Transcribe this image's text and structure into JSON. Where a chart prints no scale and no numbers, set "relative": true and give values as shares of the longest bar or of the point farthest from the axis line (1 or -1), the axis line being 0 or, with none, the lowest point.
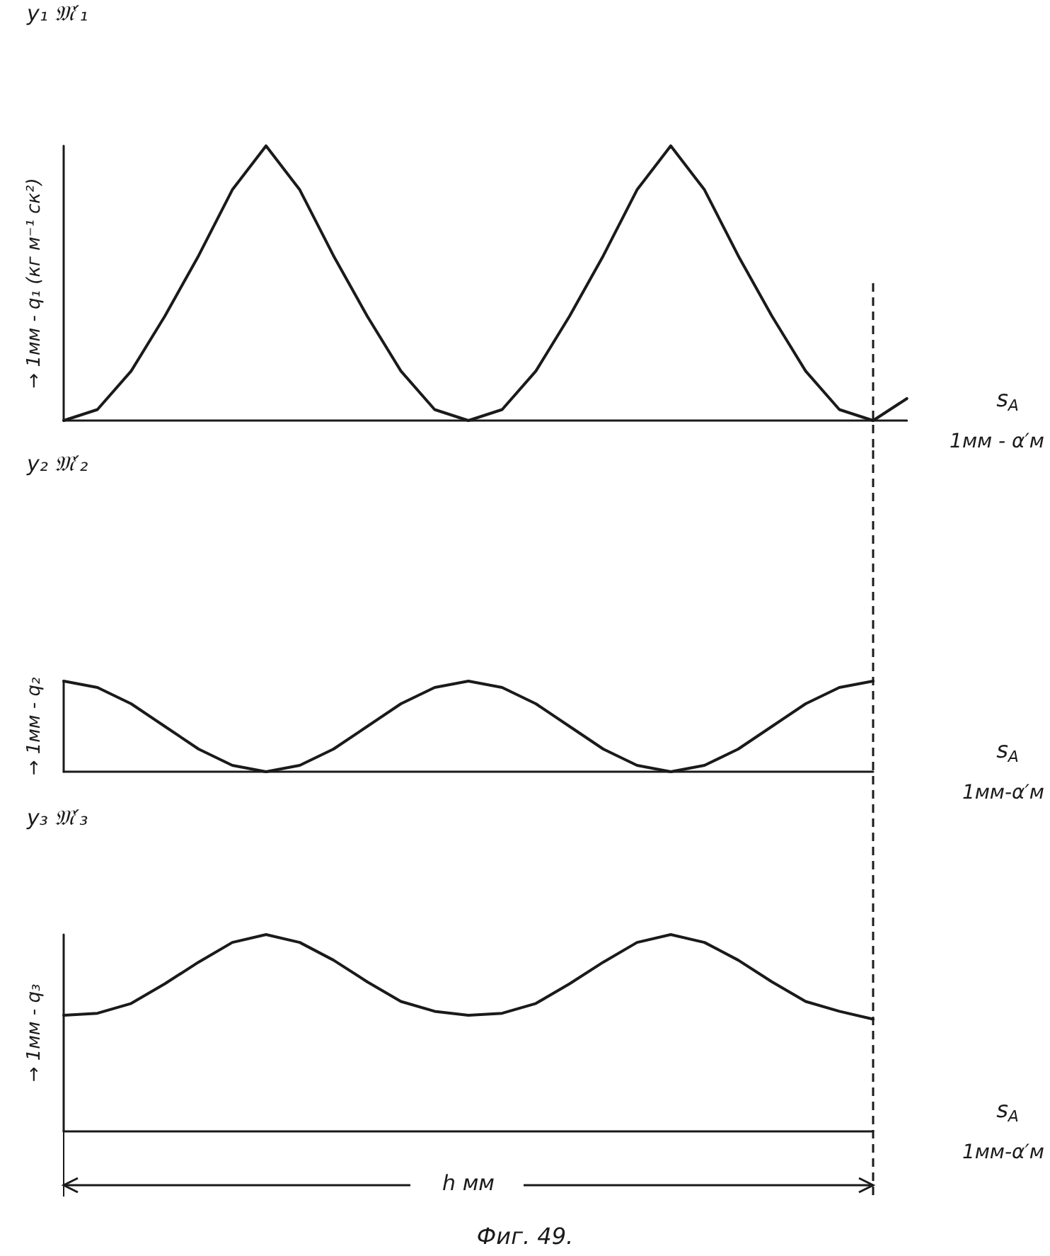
{
  "chart_data": [
    {
      "type": "line",
      "relative": true,
      "ylabel": "→ 1мм - q₁ (кг м⁻¹ ск²)",
      "xlabel": "s$_{A}$",
      "annotations": [
        "y₁ 𝔐′₁",
        "1мм - α′м"
      ],
      "marker": "none",
      "line_style": "solid",
      "categories": [
        null,
        null,
        null,
        null,
        null,
        null,
        null,
        null,
        null,
        null,
        null,
        null,
        null,
        null,
        null,
        null,
        null,
        null,
        null,
        null,
        null,
        null,
        null,
        null,
        null,
        null
      ],
      "series": [
        {
          "color": "#1a1a1a",
          "values": [
            0,
            0.04,
            0.18,
            0.38,
            0.6,
            0.84,
            1,
            0.84,
            0.6,
            0.38,
            0.18,
            0.04,
            0,
            0.04,
            0.18,
            0.38,
            0.6,
            0.84,
            1,
            0.84,
            0.6,
            0.38,
            0.18,
            0.04,
            0,
            0.08
          ]
        }
      ]
    },
    {
      "type": "line",
      "relative": true,
      "ylabel": "→ 1мм - q₂",
      "xlabel": "s$_{A}$",
      "annotations": [
        "y₂ 𝔐′₂",
        "1мм-α′м"
      ],
      "marker": "none",
      "line_style": "solid",
      "categories": [
        null,
        null,
        null,
        null,
        null,
        null,
        null,
        null,
        null,
        null,
        null,
        null,
        null,
        null,
        null,
        null,
        null,
        null,
        null,
        null,
        null,
        null,
        null,
        null,
        null
      ],
      "series": [
        {
          "color": "#1a1a1a",
          "values": [
            1,
            0.93,
            0.75,
            0.5,
            0.25,
            0.07,
            0,
            0.07,
            0.25,
            0.5,
            0.75,
            0.93,
            1,
            0.93,
            0.75,
            0.5,
            0.25,
            0.07,
            0,
            0.07,
            0.25,
            0.5,
            0.75,
            0.93,
            1
          ]
        }
      ]
    },
    {
      "type": "line",
      "relative": true,
      "ylabel": "→ 1мм - q₃",
      "xlabel": "s$_{A}$",
      "annotations": [
        "y₃ 𝔐′₃",
        "1мм-α′м",
        "h мм",
        "Фиг. 49."
      ],
      "marker": "none",
      "line_style": "solid",
      "categories": [
        null,
        null,
        null,
        null,
        null,
        null,
        null,
        null,
        null,
        null,
        null,
        null,
        null,
        null,
        null,
        null,
        null,
        null,
        null,
        null,
        null,
        null,
        null,
        null,
        null
      ],
      "series": [
        {
          "color": "#1a1a1a",
          "values": [
            0.59,
            0.6,
            0.65,
            0.75,
            0.86,
            0.96,
            1,
            0.96,
            0.87,
            0.76,
            0.66,
            0.61,
            0.59,
            0.6,
            0.65,
            0.75,
            0.86,
            0.96,
            1,
            0.96,
            0.87,
            0.76,
            0.66,
            0.61,
            0.57
          ]
        }
      ]
    }
  ]
}
